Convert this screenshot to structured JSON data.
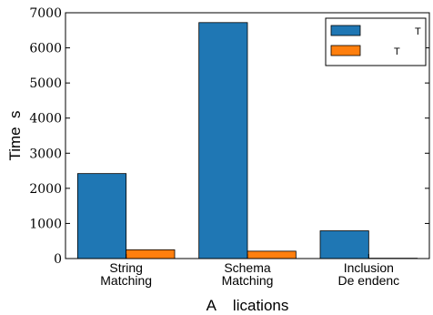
{
  "chart_data": {
    "type": "bar",
    "categories": [
      [
        "String",
        "Matching"
      ],
      [
        "Schema",
        "Matching"
      ],
      [
        "Inclusion",
        "De  endenc"
      ]
    ],
    "series": [
      {
        "name": "T",
        "color": "#1f77b4",
        "values": [
          2420,
          6720,
          790
        ]
      },
      {
        "name": "T",
        "color": "#ff7f0e",
        "values": [
          250,
          210,
          10
        ]
      }
    ],
    "xlabel": "A    lications",
    "ylabel": "Time  s",
    "ylim": [
      0,
      7000
    ],
    "yticks": [
      0,
      1000,
      2000,
      3000,
      4000,
      5000,
      6000,
      7000
    ],
    "legend_position": "top-right",
    "grid": false
  }
}
